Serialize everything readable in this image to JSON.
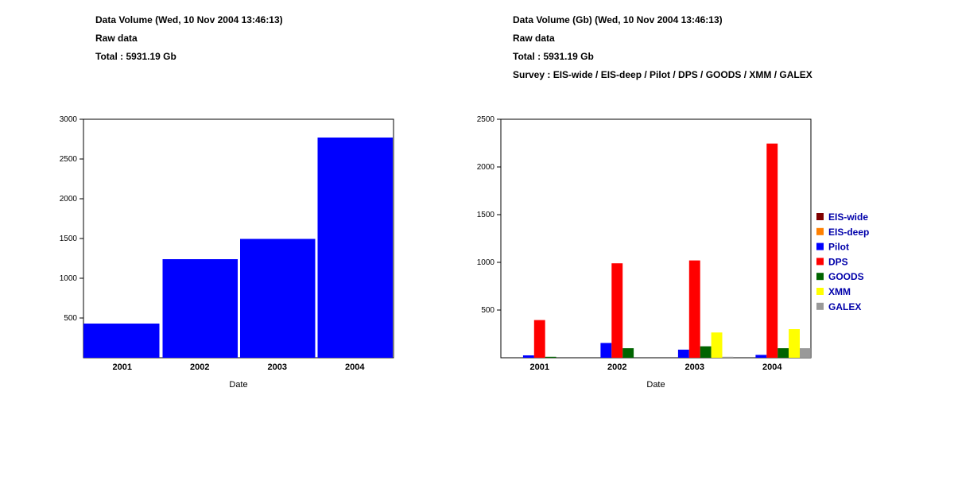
{
  "left": {
    "title": "Data Volume  (Wed, 10 Nov 2004 13:46:13)",
    "subtitle": "Raw data",
    "total": "Total : 5931.19 Gb"
  },
  "right": {
    "title": "Data Volume (Gb) (Wed, 10 Nov 2004 13:46:13)",
    "subtitle": "Raw data",
    "total": "Total : 5931.19 Gb",
    "survey": "Survey : EIS-wide / EIS-deep / Pilot / DPS / GOODS / XMM / GALEX"
  },
  "chart_data": [
    {
      "type": "bar",
      "title": "Data Volume  (Wed, 10 Nov 2004 13:46:13)",
      "xlabel": "Date",
      "ylabel": "",
      "categories": [
        "2001",
        "2002",
        "2003",
        "2004"
      ],
      "values": [
        430,
        1240,
        1495,
        2770
      ],
      "ylim": [
        0,
        3000
      ],
      "yticks": [
        500,
        1000,
        1500,
        2000,
        2500,
        3000
      ],
      "color": "#0000ff",
      "grid": false
    },
    {
      "type": "bar",
      "title": "Data Volume (Gb) (Wed, 10 Nov 2004 13:46:13)",
      "xlabel": "Date",
      "ylabel": "",
      "categories": [
        "2001",
        "2002",
        "2003",
        "2004"
      ],
      "ylim": [
        0,
        2500
      ],
      "yticks": [
        500,
        1000,
        1500,
        2000,
        2500
      ],
      "legend_position": "right",
      "grid": false,
      "series": [
        {
          "name": "EIS-wide",
          "color": "#800000",
          "values": [
            0,
            0,
            0,
            0
          ]
        },
        {
          "name": "EIS-deep",
          "color": "#ff8000",
          "values": [
            0,
            0,
            0,
            0
          ]
        },
        {
          "name": "Pilot",
          "color": "#0000ff",
          "values": [
            25,
            155,
            85,
            30
          ]
        },
        {
          "name": "DPS",
          "color": "#ff0000",
          "values": [
            395,
            990,
            1020,
            2245
          ]
        },
        {
          "name": "GOODS",
          "color": "#006400",
          "values": [
            10,
            100,
            120,
            100
          ]
        },
        {
          "name": "XMM",
          "color": "#ffff00",
          "values": [
            0,
            0,
            265,
            300
          ]
        },
        {
          "name": "GALEX",
          "color": "#999999",
          "values": [
            0,
            0,
            10,
            100
          ]
        }
      ]
    }
  ]
}
